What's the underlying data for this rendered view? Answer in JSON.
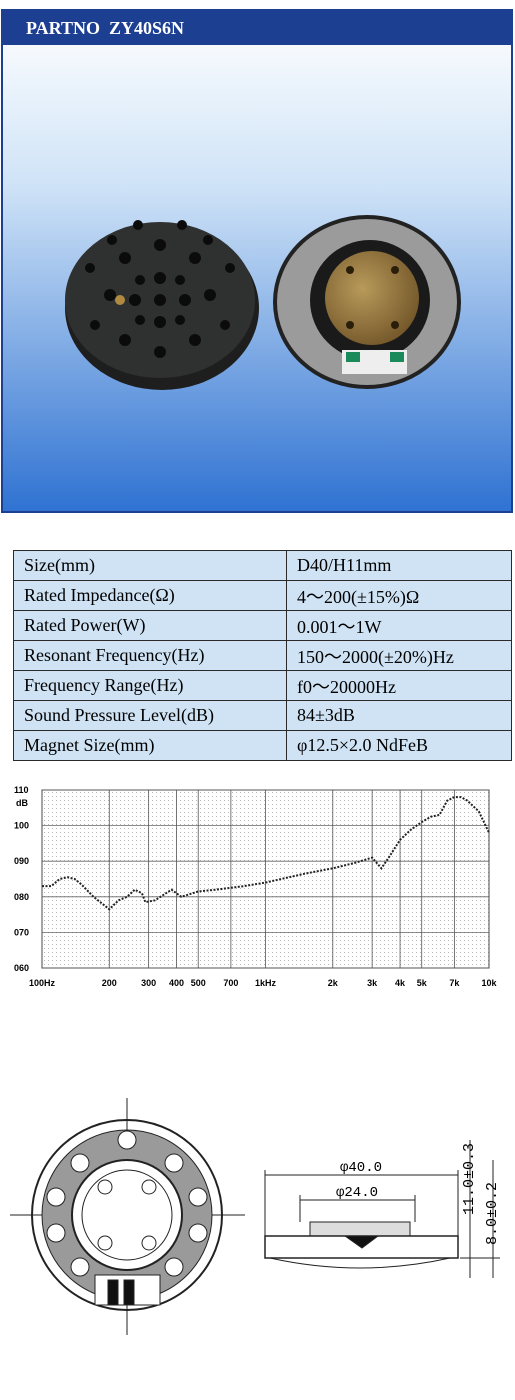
{
  "header": {
    "title": "PARTNO  ZY40S6N"
  },
  "table": {
    "rows": [
      [
        "Size(mm)",
        "D40/H11mm"
      ],
      [
        "Rated Impedance(Ω)",
        "4～200(±15%)Ω"
      ],
      [
        "Rated Power(W)",
        "0.001～1W"
      ],
      [
        "Resonant Frequency(Hz)",
        "150～2000(±20%)Hz"
      ],
      [
        "Frequency Range(Hz)",
        "f0～20000Hz"
      ],
      [
        "Sound Pressure Level(dB)",
        "84±3dB"
      ],
      [
        "Magnet Size(mm)",
        "φ12.5×2.0 NdFeB"
      ]
    ]
  },
  "chart_data": {
    "type": "line",
    "ylabel": "dB",
    "log_x": true,
    "color": "#222222",
    "x": [
      100,
      110,
      120,
      130,
      140,
      150,
      170,
      200,
      220,
      240,
      260,
      280,
      290,
      320,
      380,
      420,
      500,
      600,
      800,
      1000,
      1500,
      2000,
      2500,
      3000,
      3300,
      3600,
      4000,
      4500,
      5000,
      5500,
      6000,
      6500,
      7000,
      7500,
      8000,
      9000,
      10000
    ],
    "values": [
      83,
      83,
      85,
      85.5,
      85,
      83.5,
      80,
      76.5,
      79,
      80,
      82,
      81,
      78.5,
      79,
      82,
      80,
      81.5,
      82,
      83,
      84,
      86.5,
      88,
      89.5,
      91,
      88,
      91.5,
      96,
      99,
      101,
      102.5,
      103,
      107,
      108,
      108,
      107,
      104,
      98
    ],
    "xlim": [
      100,
      10000
    ],
    "xticks": [
      {
        "value": 100,
        "label": "100Hz"
      },
      200,
      300,
      400,
      500,
      700,
      {
        "value": 1000,
        "label": "1kHz"
      },
      {
        "value": 2000,
        "label": "2k"
      },
      {
        "value": 3000,
        "label": "3k"
      },
      {
        "value": 4000,
        "label": "4k"
      },
      {
        "value": 5000,
        "label": "5k"
      },
      {
        "value": 7000,
        "label": "7k"
      },
      {
        "value": 10000,
        "label": "10k"
      }
    ],
    "ylim": [
      60,
      110
    ],
    "yticks": [
      {
        "value": 60,
        "label": "060"
      },
      {
        "value": 70,
        "label": "070"
      },
      {
        "value": 80,
        "label": "080"
      },
      {
        "value": 90,
        "label": "090"
      },
      100,
      110
    ],
    "grid": true
  },
  "drawing": {
    "outer_diameter": "φ40.0",
    "inner_diameter": "φ24.0",
    "height": "11.0±0.3",
    "step": "8.0±0.2"
  }
}
